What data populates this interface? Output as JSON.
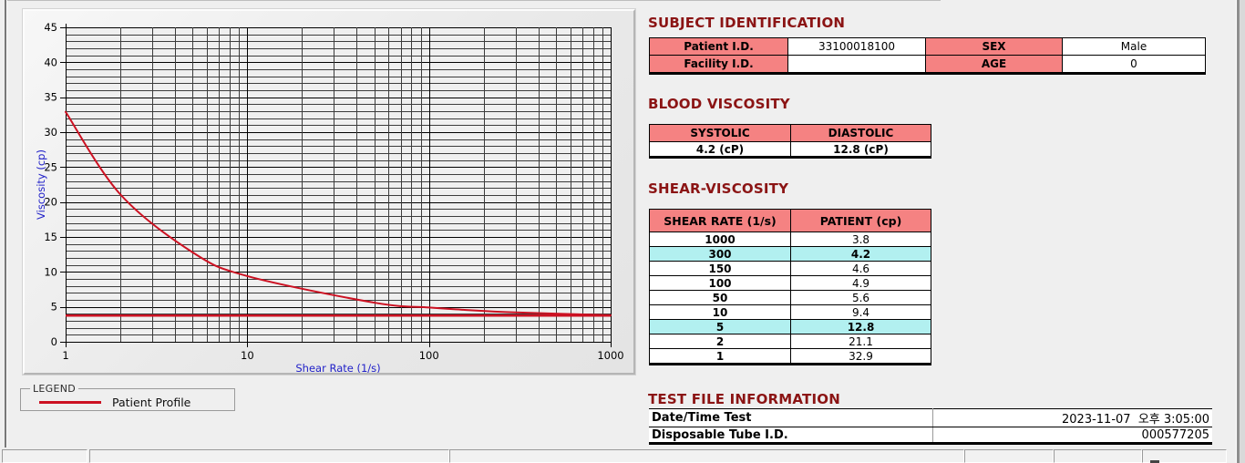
{
  "colors": {
    "title_maroon": "#8B1414",
    "header_pink": "#F58282",
    "highlight_cyan": "#B2F0F0",
    "series_red": "#CC1122",
    "axis_label_blue": "#2121C8"
  },
  "legend": {
    "box_label": "LEGEND",
    "series_label": "Patient Profile"
  },
  "sections": {
    "subject": {
      "title": "SUBJECT IDENTIFICATION",
      "rows": [
        {
          "label": "Patient I.D.",
          "value": "33100018100",
          "label2": "SEX",
          "value2": "Male"
        },
        {
          "label": "Facility I.D.",
          "value": "",
          "label2": "AGE",
          "value2": "0"
        }
      ]
    },
    "blood_viscosity": {
      "title": "BLOOD VISCOSITY",
      "headers": [
        "SYSTOLIC",
        "DIASTOLIC"
      ],
      "values": [
        "4.2 (cP)",
        "12.8 (cP)"
      ]
    },
    "shear_viscosity": {
      "title": "SHEAR-VISCOSITY",
      "headers": [
        "SHEAR RATE (1/s)",
        "PATIENT (cp)"
      ],
      "rows": [
        {
          "shear_rate": "1000",
          "patient": "3.8",
          "highlight": false
        },
        {
          "shear_rate": "300",
          "patient": "4.2",
          "highlight": true
        },
        {
          "shear_rate": "150",
          "patient": "4.6",
          "highlight": false
        },
        {
          "shear_rate": "100",
          "patient": "4.9",
          "highlight": false
        },
        {
          "shear_rate": "50",
          "patient": "5.6",
          "highlight": false
        },
        {
          "shear_rate": "10",
          "patient": "9.4",
          "highlight": false
        },
        {
          "shear_rate": "5",
          "patient": "12.8",
          "highlight": true
        },
        {
          "shear_rate": "2",
          "patient": "21.1",
          "highlight": false
        },
        {
          "shear_rate": "1",
          "patient": "32.9",
          "highlight": false
        }
      ]
    },
    "test_file": {
      "title": "TEST FILE INFORMATION",
      "rows": [
        {
          "label": "Date/Time Test",
          "value": "2023-11-07  오후 3:05:00"
        },
        {
          "label": "Disposable Tube I.D.",
          "value": "000577205"
        }
      ]
    }
  },
  "chart_data": {
    "type": "line",
    "title": "",
    "xlabel": "Shear Rate (1/s)",
    "ylabel": "Viscosity (cp)",
    "xscale": "log",
    "xlim": [
      1,
      1000
    ],
    "ylim": [
      0,
      45
    ],
    "xticks": [
      1,
      10,
      100,
      1000
    ],
    "yticks": [
      0,
      5,
      10,
      15,
      20,
      25,
      30,
      35,
      40,
      45
    ],
    "grid": "major and minor on, black on light gray",
    "legend_position": "separate LEGEND group box below chart",
    "series": [
      {
        "name": "Patient Profile",
        "color": "#CC1122",
        "x": [
          1,
          2,
          5,
          10,
          50,
          100,
          150,
          300,
          1000
        ],
        "y": [
          32.9,
          21.1,
          12.8,
          9.4,
          5.6,
          4.9,
          4.6,
          4.2,
          3.8
        ]
      },
      {
        "name": "high-shear asymptote line",
        "color": "#CC1122",
        "type": "hline",
        "y_value": 3.75
      }
    ]
  }
}
